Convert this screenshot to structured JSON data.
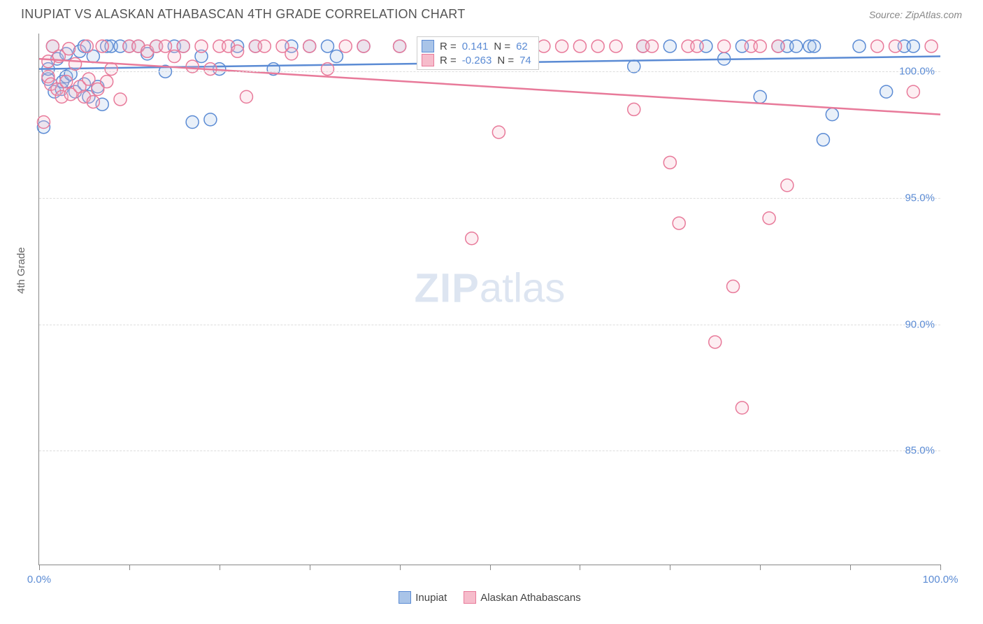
{
  "header": {
    "title": "INUPIAT VS ALASKAN ATHABASCAN 4TH GRADE CORRELATION CHART",
    "source_prefix": "Source: ",
    "source": "ZipAtlas.com"
  },
  "watermark": {
    "zip": "ZIP",
    "atlas": "atlas"
  },
  "chart": {
    "type": "scatter",
    "xlim": [
      0,
      100
    ],
    "ylim": [
      80.5,
      101.5
    ],
    "x_tick_positions": [
      0,
      10,
      20,
      30,
      40,
      50,
      60,
      70,
      80,
      90,
      100
    ],
    "x_tick_labels": {
      "0": "0.0%",
      "100": "100.0%"
    },
    "y_grid_positions": [
      85,
      90,
      95,
      100
    ],
    "y_tick_labels": {
      "85": "85.0%",
      "90": "90.0%",
      "95": "95.0%",
      "100": "100.0%"
    },
    "y_axis_label": "4th Grade",
    "background_color": "#ffffff",
    "grid_color": "#dddddd",
    "axis_color": "#888888",
    "label_color": "#5b8bd4",
    "marker_radius": 9,
    "marker_stroke_width": 1.5,
    "marker_fill_opacity": 0.25,
    "line_width": 2.5,
    "series": [
      {
        "name": "Inupiat",
        "color_stroke": "#5b8bd4",
        "color_fill": "#a9c4e8",
        "r_label": "R =",
        "r_value": "0.141",
        "n_label": "N =",
        "n_value": "62",
        "trend": {
          "x1": 0,
          "y1": 100.1,
          "x2": 100,
          "y2": 100.6
        },
        "points": [
          [
            0.5,
            97.8
          ],
          [
            1,
            99.7
          ],
          [
            1,
            100.1
          ],
          [
            1.5,
            101.0
          ],
          [
            1.7,
            99.2
          ],
          [
            2,
            100.5
          ],
          [
            2.5,
            99.3
          ],
          [
            2.6,
            99.6
          ],
          [
            3,
            99.8
          ],
          [
            3,
            100.7
          ],
          [
            3.5,
            99.9
          ],
          [
            4,
            99.2
          ],
          [
            4.5,
            100.8
          ],
          [
            5,
            99.5
          ],
          [
            5,
            101.0
          ],
          [
            5.5,
            99.0
          ],
          [
            6,
            100.6
          ],
          [
            6.5,
            99.4
          ],
          [
            7,
            98.7
          ],
          [
            7.5,
            101.0
          ],
          [
            8,
            101.0
          ],
          [
            9,
            101.0
          ],
          [
            10,
            101.0
          ],
          [
            11,
            101.0
          ],
          [
            12,
            100.7
          ],
          [
            13,
            101.0
          ],
          [
            14,
            100.0
          ],
          [
            15,
            101.0
          ],
          [
            16,
            101.0
          ],
          [
            17,
            98.0
          ],
          [
            18,
            100.6
          ],
          [
            19,
            98.1
          ],
          [
            20,
            100.1
          ],
          [
            22,
            101.0
          ],
          [
            24,
            101.0
          ],
          [
            26,
            100.1
          ],
          [
            28,
            101.0
          ],
          [
            30,
            101.0
          ],
          [
            32,
            101.0
          ],
          [
            33,
            100.6
          ],
          [
            36,
            101.0
          ],
          [
            40,
            101.0
          ],
          [
            44,
            101.0
          ],
          [
            46,
            101.0
          ],
          [
            66,
            100.2
          ],
          [
            67,
            101.0
          ],
          [
            70,
            101.0
          ],
          [
            74,
            101.0
          ],
          [
            76,
            100.5
          ],
          [
            78,
            101.0
          ],
          [
            80,
            99.0
          ],
          [
            82,
            101.0
          ],
          [
            83,
            101.0
          ],
          [
            84,
            101.0
          ],
          [
            85.5,
            101.0
          ],
          [
            86,
            101.0
          ],
          [
            87,
            97.3
          ],
          [
            88,
            98.3
          ],
          [
            91,
            101.0
          ],
          [
            94,
            99.2
          ],
          [
            96,
            101.0
          ],
          [
            97,
            101.0
          ]
        ]
      },
      {
        "name": "Alaskan Athabascans",
        "color_stroke": "#e87a9a",
        "color_fill": "#f6bccb",
        "r_label": "R =",
        "r_value": "-0.263",
        "n_label": "N =",
        "n_value": "74",
        "trend": {
          "x1": 0,
          "y1": 100.5,
          "x2": 100,
          "y2": 98.3
        },
        "points": [
          [
            0.5,
            98.0
          ],
          [
            1,
            99.8
          ],
          [
            1,
            100.4
          ],
          [
            1.3,
            99.5
          ],
          [
            1.5,
            101.0
          ],
          [
            2,
            99.3
          ],
          [
            2.2,
            100.6
          ],
          [
            2.5,
            99.0
          ],
          [
            3,
            99.6
          ],
          [
            3.3,
            100.9
          ],
          [
            3.5,
            99.1
          ],
          [
            4,
            100.3
          ],
          [
            4.5,
            99.4
          ],
          [
            5,
            99.0
          ],
          [
            5.3,
            101.0
          ],
          [
            5.5,
            99.7
          ],
          [
            6,
            98.8
          ],
          [
            6.5,
            99.3
          ],
          [
            7,
            101.0
          ],
          [
            7.5,
            99.6
          ],
          [
            8,
            100.1
          ],
          [
            9,
            98.9
          ],
          [
            10,
            101.0
          ],
          [
            11,
            101.0
          ],
          [
            12,
            100.8
          ],
          [
            13,
            101.0
          ],
          [
            14,
            101.0
          ],
          [
            15,
            100.6
          ],
          [
            16,
            101.0
          ],
          [
            17,
            100.2
          ],
          [
            18,
            101.0
          ],
          [
            19,
            100.1
          ],
          [
            20,
            101.0
          ],
          [
            21,
            101.0
          ],
          [
            22,
            100.8
          ],
          [
            23,
            99.0
          ],
          [
            24,
            101.0
          ],
          [
            25,
            101.0
          ],
          [
            27,
            101.0
          ],
          [
            28,
            100.7
          ],
          [
            30,
            101.0
          ],
          [
            32,
            100.1
          ],
          [
            34,
            101.0
          ],
          [
            36,
            101.0
          ],
          [
            40,
            101.0
          ],
          [
            44,
            101.0
          ],
          [
            46,
            100.7
          ],
          [
            48,
            93.4
          ],
          [
            51,
            97.6
          ],
          [
            56,
            101.0
          ],
          [
            58,
            101.0
          ],
          [
            60,
            101.0
          ],
          [
            62,
            101.0
          ],
          [
            64,
            101.0
          ],
          [
            66,
            98.5
          ],
          [
            67,
            101.0
          ],
          [
            68,
            101.0
          ],
          [
            70,
            96.4
          ],
          [
            71,
            94.0
          ],
          [
            72,
            101.0
          ],
          [
            73,
            101.0
          ],
          [
            75,
            89.3
          ],
          [
            76,
            101.0
          ],
          [
            77,
            91.5
          ],
          [
            78,
            86.7
          ],
          [
            79,
            101.0
          ],
          [
            80,
            101.0
          ],
          [
            81,
            94.2
          ],
          [
            82,
            101.0
          ],
          [
            83,
            95.5
          ],
          [
            93,
            101.0
          ],
          [
            95,
            101.0
          ],
          [
            97,
            99.2
          ],
          [
            99,
            101.0
          ]
        ]
      }
    ]
  },
  "bottom_legend": {
    "items": [
      {
        "label": "Inupiat",
        "stroke": "#5b8bd4",
        "fill": "#a9c4e8"
      },
      {
        "label": "Alaskan Athabascans",
        "stroke": "#e87a9a",
        "fill": "#f6bccb"
      }
    ]
  }
}
